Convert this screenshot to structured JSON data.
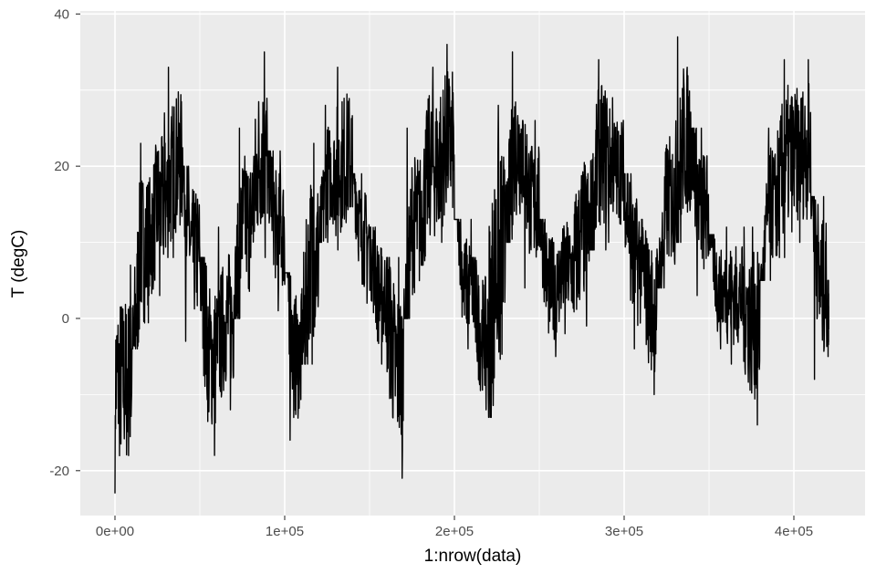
{
  "chart_data": {
    "type": "line",
    "title": "",
    "xlabel": "1:nrow(data)",
    "ylabel": "T (degC)",
    "xlim": [
      -20430,
      441935
    ],
    "ylim": [
      -25.9,
      40.4
    ],
    "x_ticks": [
      0,
      100000,
      200000,
      300000,
      400000
    ],
    "x_tick_labels": [
      "0e+00",
      "1e+05",
      "2e+05",
      "3e+05",
      "4e+05"
    ],
    "y_ticks": [
      -20,
      0,
      20,
      40
    ],
    "y_tick_labels": [
      "-20",
      "0",
      "20",
      "40"
    ],
    "grid": true,
    "background": "#EBEBEB",
    "line_color": "#000000",
    "series": [
      {
        "bin_size_rows": 10000,
        "description_of_values": "per-bin minimum and maximum temperature",
        "bin_min": [
          -23,
          -4,
          3,
          8,
          -3,
          -18,
          -12,
          0,
          8,
          1,
          -16,
          -6,
          10,
          9,
          2,
          -6,
          -21,
          0,
          7,
          10,
          -4,
          -12,
          -13,
          10,
          4,
          -5,
          -2,
          -1,
          9,
          10,
          -4,
          -10,
          4,
          10,
          3,
          -4,
          -6,
          -14,
          5,
          8,
          10,
          -8,
          -5
        ],
        "bin_max": [
          7,
          23,
          27,
          33,
          20,
          8,
          12,
          25,
          35,
          22,
          6,
          23,
          28,
          33,
          19,
          12,
          8,
          25,
          33,
          36,
          13,
          8,
          28,
          35,
          26,
          13,
          15,
          24,
          34,
          29,
          19,
          13,
          27,
          37,
          25,
          11,
          12,
          12,
          25,
          34,
          34,
          16,
          5
        ]
      }
    ]
  }
}
